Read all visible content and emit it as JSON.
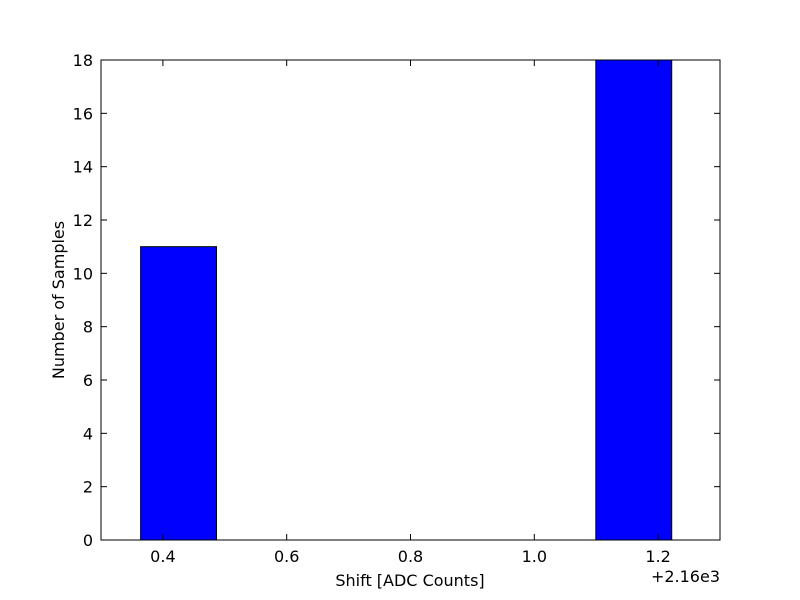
{
  "chart_data": {
    "type": "histogram",
    "xlabel": "Shift [ADC Counts]",
    "ylabel": "Number of Samples",
    "x_offset_label": "+2.16e3",
    "bins": [
      2160.364,
      2160.4866,
      2160.6091,
      2160.7317,
      2160.8543,
      2160.9769,
      2161.0994,
      2161.222
    ],
    "values": [
      11,
      0,
      0,
      0,
      0,
      0,
      18
    ],
    "color": "#0000ff",
    "edgecolor": "#000000",
    "xlim": [
      2160.3,
      2161.3
    ],
    "xticks": [
      {
        "value": 2160.4,
        "label": "0.4"
      },
      {
        "value": 2160.6,
        "label": "0.6"
      },
      {
        "value": 2160.8,
        "label": "0.8"
      },
      {
        "value": 2161.0,
        "label": "1.0"
      },
      {
        "value": 2161.2,
        "label": "1.2"
      }
    ],
    "ylim": [
      0,
      18
    ],
    "yticks": [
      0,
      2,
      4,
      6,
      8,
      10,
      12,
      14,
      16,
      18
    ],
    "grid": false
  }
}
